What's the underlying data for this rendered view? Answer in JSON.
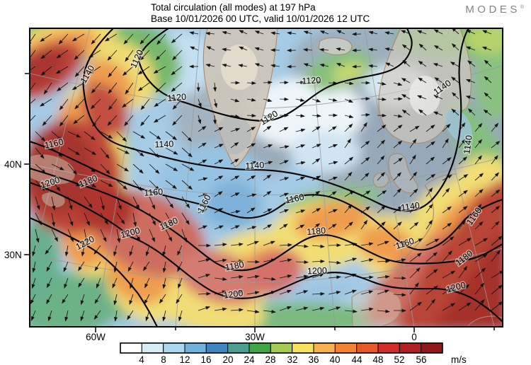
{
  "header": {
    "title_line1": "Total circulation (all modes) at 197 hPa",
    "title_line2": "Base 10/01/2026 00 UTC, valid 10/01/2026 12 UTC",
    "logo_text": "MODES",
    "logo_mark": "®"
  },
  "map": {
    "lat_labels": [
      "40N",
      "30N"
    ],
    "lon_labels": [
      "60W",
      "30W",
      "0"
    ],
    "contour_levels_shown": [
      1120,
      1140,
      1160,
      1180,
      1200,
      1220
    ],
    "contour_labels": [
      "1140",
      "1120",
      "1120",
      "1120",
      "1120",
      "1140",
      "1140",
      "1160",
      "1200",
      "1180",
      "1140",
      "1160",
      "1140",
      "1180",
      "1200",
      "1220",
      "1160",
      "1160",
      "1180",
      "1200",
      "1200",
      "1160",
      "1160",
      "1180",
      "1200",
      "1140",
      "1180"
    ]
  },
  "colorbar": {
    "tick_labels": [
      "4",
      "8",
      "12",
      "16",
      "20",
      "24",
      "28",
      "32",
      "36",
      "40",
      "44",
      "48",
      "52",
      "56"
    ],
    "unit": "m/s",
    "colors": [
      "#ffffff",
      "#d6edf8",
      "#a8d9f0",
      "#70b1dd",
      "#3f85c3",
      "#4b9e90",
      "#41a648",
      "#a3cc51",
      "#f8e25b",
      "#f8b14b",
      "#f2832f",
      "#e75926",
      "#d02e26",
      "#b21f20",
      "#92181a"
    ]
  }
}
